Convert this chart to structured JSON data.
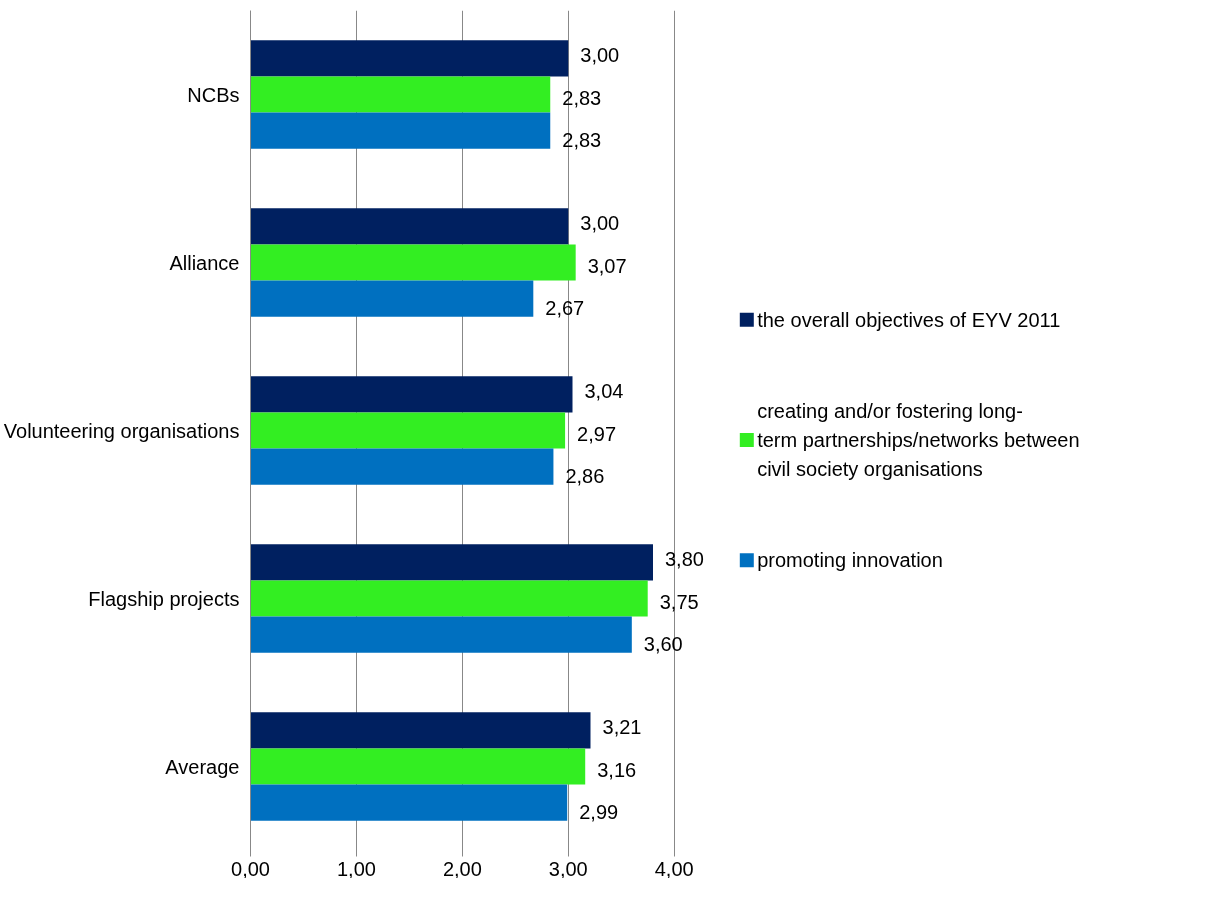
{
  "chart_data": {
    "type": "bar",
    "orientation": "horizontal",
    "categories": [
      "NCBs",
      "Alliance",
      "Volunteering organisations",
      "Flagship projects",
      "Average"
    ],
    "series": [
      {
        "name": "the overall objectives of EYV 2011",
        "color": "#002060",
        "values": [
          3.0,
          3.0,
          3.04,
          3.8,
          3.21
        ],
        "value_labels": [
          "3,00",
          "3,00",
          "3,04",
          "3,80",
          "3,21"
        ]
      },
      {
        "name": "creating and/or fostering long-term partnerships/networks between civil society organisations",
        "color": "#33ee22",
        "values": [
          2.83,
          3.07,
          2.97,
          3.75,
          3.16
        ],
        "value_labels": [
          "2,83",
          "3,07",
          "2,97",
          "3,75",
          "3,16"
        ]
      },
      {
        "name": "promoting innovation",
        "color": "#0070c0",
        "values": [
          2.83,
          2.67,
          2.86,
          3.6,
          2.99
        ],
        "value_labels": [
          "2,83",
          "2,67",
          "2,86",
          "3,60",
          "2,99"
        ]
      }
    ],
    "xlim": [
      0,
      4
    ],
    "xticks": [
      {
        "value": 0,
        "label": "0,00"
      },
      {
        "value": 1,
        "label": "1,00"
      },
      {
        "value": 2,
        "label": "2,00"
      },
      {
        "value": 3,
        "label": "3,00"
      },
      {
        "value": 4,
        "label": "4,00"
      }
    ],
    "grid": "x",
    "legend": "right"
  }
}
